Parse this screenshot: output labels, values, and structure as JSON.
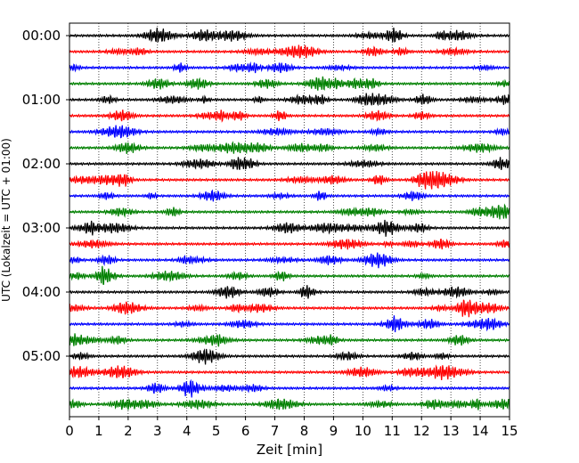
{
  "chart_data": {
    "type": "line",
    "title": "",
    "xlabel": "Zeit  [min]",
    "ylabel": "UTC (Lokalzeit = UTC + 01:00)",
    "xlim": [
      0,
      15
    ],
    "x_ticks": [
      0,
      1,
      2,
      3,
      4,
      5,
      6,
      7,
      8,
      9,
      10,
      11,
      12,
      13,
      14,
      15
    ],
    "y_tick_labels": [
      "00:00",
      "01:00",
      "02:00",
      "03:00",
      "04:00",
      "05:00"
    ],
    "trace_start_times": [
      "00:00",
      "00:15",
      "00:30",
      "00:45",
      "01:00",
      "01:15",
      "01:30",
      "01:45",
      "02:00",
      "02:15",
      "02:30",
      "02:45",
      "03:00",
      "03:15",
      "03:30",
      "03:45",
      "04:00",
      "04:15",
      "04:30",
      "04:45",
      "05:00",
      "05:15",
      "05:30",
      "05:45"
    ],
    "trace_colors": [
      "#000000",
      "#ff0000",
      "#0000ff",
      "#008000"
    ],
    "grid": "vertical dotted",
    "legend": "none"
  }
}
